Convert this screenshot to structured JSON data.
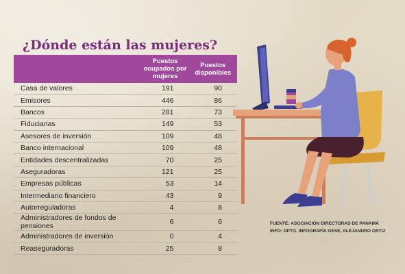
{
  "title": "¿Dónde están las mujeres?",
  "table": {
    "headers": {
      "category": "",
      "women": "Puestos ocupados por mujeres",
      "available": "Puestos disponibles"
    },
    "rows": [
      {
        "category": "Casa de valores",
        "women": "191",
        "available": "90"
      },
      {
        "category": "Emisores",
        "women": "446",
        "available": "86"
      },
      {
        "category": "Bancos",
        "women": "281",
        "available": "73"
      },
      {
        "category": "Fiduciarias",
        "women": "149",
        "available": "53"
      },
      {
        "category": "Asesores de inversión",
        "women": "109",
        "available": "48"
      },
      {
        "category": "Banco internacional",
        "women": "109",
        "available": "48"
      },
      {
        "category": "Entidades descentralizadas",
        "women": "70",
        "available": "25"
      },
      {
        "category": "Aseguradoras",
        "women": "121",
        "available": "25"
      },
      {
        "category": "Empresas públicas",
        "women": "53",
        "available": "14"
      },
      {
        "category": "Intermediario financiero",
        "women": "43",
        "available": "9"
      },
      {
        "category": "Autorreguladoras",
        "women": "4",
        "available": "8"
      },
      {
        "category": "Administradores de fondos de pensiones",
        "women": "6",
        "available": "6"
      },
      {
        "category": "Administradores de inversión",
        "women": "0",
        "available": "4"
      },
      {
        "category": "Reaseguradoras",
        "women": "25",
        "available": "8"
      }
    ]
  },
  "source": {
    "line1": "FUENTE: ASOCIACIÓN DIRECTORAS DE PANAMÁ",
    "line2": "INFO: DPTO. INFOGRAFÍA GESE, ALEJANDRO ORTIZ"
  },
  "colors": {
    "header_bg": "#a0489c",
    "title": "#7a2e7c"
  }
}
